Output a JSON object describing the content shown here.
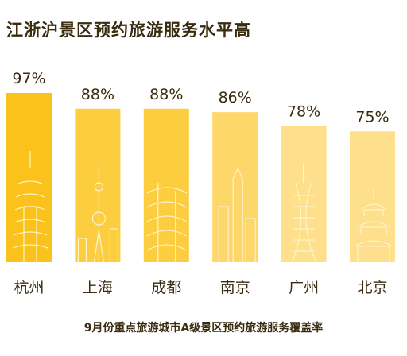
{
  "title": "江浙沪景区预约旅游服务水平高",
  "subtitle": "9月份重点旅游城市A级景区预约旅游服务覆盖率",
  "chart_data": {
    "type": "bar",
    "title": "江浙沪景区预约旅游服务水平高",
    "xlabel": "9月份重点旅游城市A级景区预约旅游服务覆盖率",
    "ylabel": "",
    "ylim": [
      0,
      100
    ],
    "grid": false,
    "categories": [
      "杭州",
      "上海",
      "成都",
      "南京",
      "广州",
      "北京"
    ],
    "values": [
      97,
      88,
      88,
      86,
      78,
      75
    ],
    "value_labels": [
      "97%",
      "88%",
      "88%",
      "86%",
      "78%",
      "75%"
    ],
    "bar_colors": [
      "#fbc21b",
      "#fccd3f",
      "#fccd3f",
      "#fdd769",
      "#fee08c",
      "#fee08c"
    ]
  },
  "colors": {
    "text": "#3a2c10",
    "line_art": "#fff3c8"
  }
}
